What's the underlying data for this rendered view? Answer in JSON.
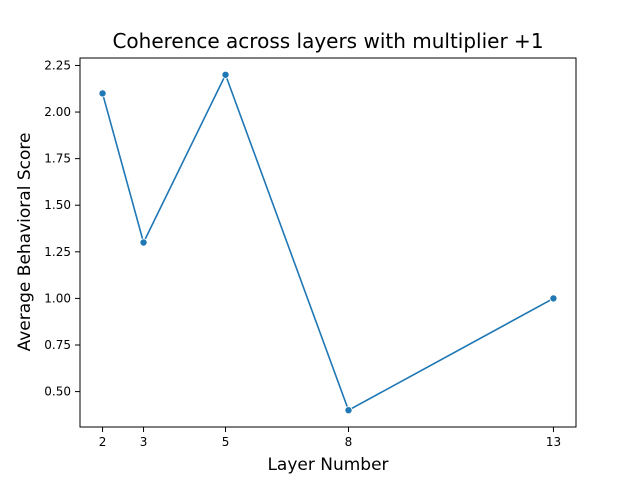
{
  "chart_data": {
    "type": "line",
    "title": "Coherence across layers with multiplier +1",
    "xlabel": "Layer Number",
    "ylabel": "Average Behavioral Score",
    "x": [
      2,
      3,
      5,
      8,
      13
    ],
    "series": [
      {
        "values": [
          2.1,
          1.3,
          2.2,
          0.4,
          1.0
        ],
        "color": "#1f77b4"
      }
    ],
    "xticks": [
      2,
      3,
      5,
      8,
      13
    ],
    "xtick_labels": [
      "2",
      "3",
      "5",
      "8",
      "13"
    ],
    "yticks": [
      0.5,
      0.75,
      1.0,
      1.25,
      1.5,
      1.75,
      2.0,
      2.25
    ],
    "ytick_labels": [
      "0.50",
      "0.75",
      "1.00",
      "1.25",
      "1.50",
      "1.75",
      "2.00",
      "2.25"
    ],
    "xlim": [
      1.45,
      13.55
    ],
    "ylim": [
      0.31,
      2.29
    ],
    "grid": false,
    "marker": "circle"
  }
}
